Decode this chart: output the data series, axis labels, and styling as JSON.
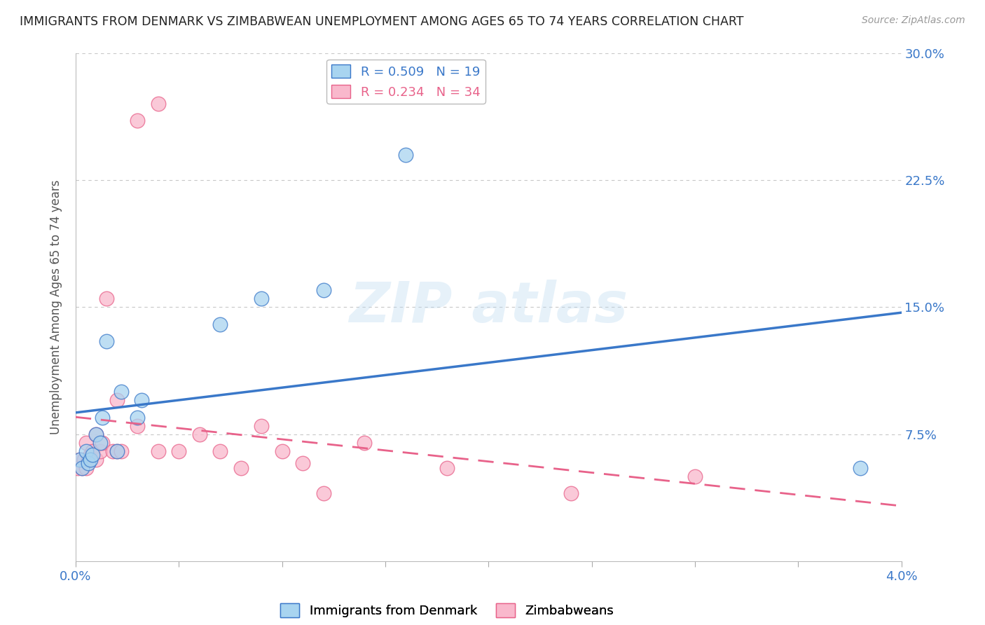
{
  "title": "IMMIGRANTS FROM DENMARK VS ZIMBABWEAN UNEMPLOYMENT AMONG AGES 65 TO 74 YEARS CORRELATION CHART",
  "source": "Source: ZipAtlas.com",
  "xlabel_blue": "Immigrants from Denmark",
  "xlabel_pink": "Zimbabweans",
  "ylabel": "Unemployment Among Ages 65 to 74 years",
  "legend_blue_R": "R = 0.509",
  "legend_blue_N": "N = 19",
  "legend_pink_R": "R = 0.234",
  "legend_pink_N": "N = 34",
  "xlim": [
    0.0,
    0.04
  ],
  "ylim": [
    0.0,
    0.3
  ],
  "xticks": [
    0.0,
    0.005,
    0.01,
    0.015,
    0.02,
    0.025,
    0.03,
    0.035,
    0.04
  ],
  "yticks": [
    0.0,
    0.075,
    0.15,
    0.225,
    0.3
  ],
  "xtick_labels_show": [
    "0.0%",
    "4.0%"
  ],
  "xtick_show_positions": [
    0.0,
    0.04
  ],
  "ytick_labels": [
    "",
    "7.5%",
    "15.0%",
    "22.5%",
    "30.0%"
  ],
  "color_blue": "#a8d4f0",
  "color_pink": "#f9b8cc",
  "line_blue": "#3a78c9",
  "line_pink": "#e8628a",
  "background": "#ffffff",
  "grid_color": "#c8c8c8",
  "blue_points_x": [
    0.0002,
    0.0003,
    0.0005,
    0.0006,
    0.0007,
    0.0008,
    0.001,
    0.0012,
    0.0013,
    0.0015,
    0.002,
    0.0022,
    0.003,
    0.0032,
    0.007,
    0.009,
    0.012,
    0.016,
    0.038
  ],
  "blue_points_y": [
    0.06,
    0.055,
    0.065,
    0.058,
    0.06,
    0.063,
    0.075,
    0.07,
    0.085,
    0.13,
    0.065,
    0.1,
    0.085,
    0.095,
    0.14,
    0.155,
    0.16,
    0.24,
    0.055
  ],
  "pink_points_x": [
    0.0001,
    0.0002,
    0.0003,
    0.0004,
    0.0005,
    0.0005,
    0.0006,
    0.0007,
    0.0008,
    0.001,
    0.001,
    0.0012,
    0.0013,
    0.0015,
    0.0018,
    0.002,
    0.002,
    0.0022,
    0.003,
    0.003,
    0.004,
    0.004,
    0.005,
    0.006,
    0.007,
    0.008,
    0.009,
    0.01,
    0.011,
    0.012,
    0.014,
    0.018,
    0.024,
    0.03
  ],
  "pink_points_y": [
    0.055,
    0.06,
    0.055,
    0.06,
    0.055,
    0.07,
    0.06,
    0.063,
    0.065,
    0.06,
    0.075,
    0.065,
    0.07,
    0.155,
    0.065,
    0.065,
    0.095,
    0.065,
    0.08,
    0.26,
    0.065,
    0.27,
    0.065,
    0.075,
    0.065,
    0.055,
    0.08,
    0.065,
    0.058,
    0.04,
    0.07,
    0.055,
    0.04,
    0.05
  ]
}
